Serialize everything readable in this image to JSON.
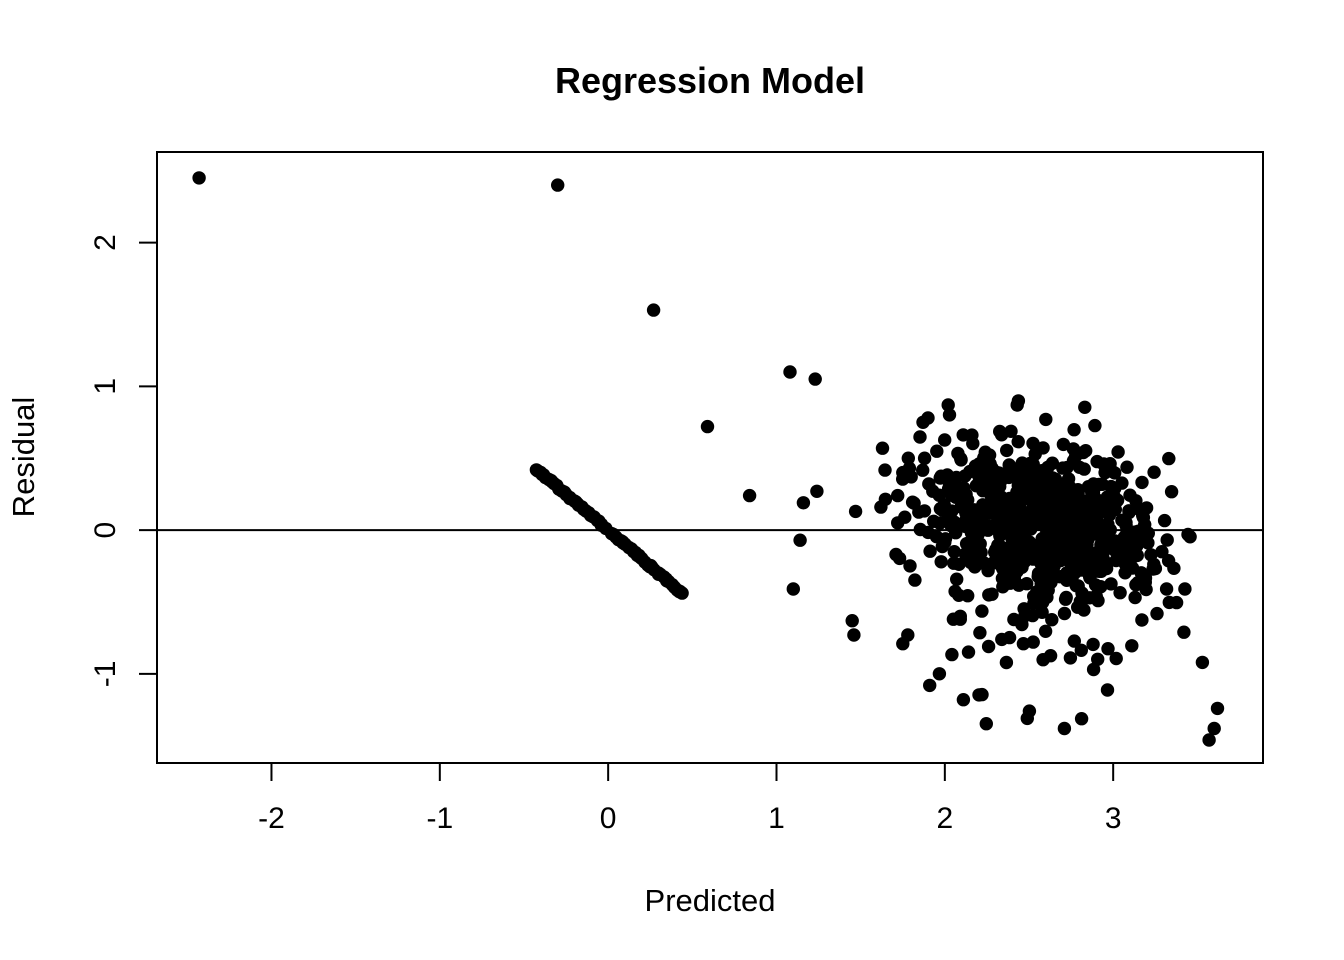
{
  "chart_data": {
    "type": "scatter",
    "title": "Regression Model",
    "xlabel": "Predicted",
    "ylabel": "Residual",
    "x_ticks": [
      -2,
      -1,
      0,
      1,
      2,
      3
    ],
    "y_ticks": [
      -1,
      0,
      1,
      2
    ],
    "xlim": [
      -2.68,
      3.89
    ],
    "ylim": [
      -1.62,
      2.63
    ],
    "hline_y": 0,
    "grid": false,
    "legend": "none",
    "background_color": "#ffffff",
    "point_color": "#000000",
    "point_radius_px": 6.7,
    "isolated_points": [
      [
        -2.43,
        2.45
      ],
      [
        -0.3,
        2.4
      ],
      [
        0.27,
        1.53
      ],
      [
        0.59,
        0.72
      ],
      [
        0.84,
        0.24
      ],
      [
        1.08,
        1.1
      ],
      [
        1.23,
        1.05
      ],
      [
        1.16,
        0.19
      ],
      [
        1.24,
        0.27
      ],
      [
        1.14,
        -0.07
      ],
      [
        1.1,
        -0.41
      ],
      [
        1.45,
        -0.63
      ],
      [
        1.46,
        -0.73
      ],
      [
        1.47,
        0.13
      ],
      [
        1.62,
        0.16
      ],
      [
        1.63,
        0.57
      ],
      [
        1.72,
        0.24
      ],
      [
        1.72,
        0.05
      ],
      [
        1.71,
        -0.17
      ],
      [
        1.75,
        0.4
      ],
      [
        1.8,
        0.37
      ],
      [
        1.87,
        0.75
      ],
      [
        1.88,
        0.5
      ],
      [
        1.9,
        0.78
      ],
      [
        2.02,
        0.87
      ],
      [
        1.75,
        -0.79
      ],
      [
        1.78,
        -0.73
      ],
      [
        1.91,
        -1.08
      ],
      [
        2.11,
        -1.18
      ],
      [
        2.49,
        -1.31
      ],
      [
        2.71,
        -1.38
      ],
      [
        3.42,
        -0.71
      ],
      [
        3.53,
        -0.92
      ],
      [
        3.62,
        -1.24
      ],
      [
        3.6,
        -1.38
      ],
      [
        3.57,
        -1.46
      ],
      [
        2.43,
        0.87
      ],
      [
        2.6,
        0.77
      ]
    ],
    "diagonal_stripe": {
      "slope": -1,
      "intercept": 0,
      "jitter": 0.008,
      "seed": 3,
      "segments": [
        {
          "x_start": -0.43,
          "x_end": -0.02,
          "n": 34
        },
        {
          "x_start": 0.02,
          "x_end": 0.44,
          "n": 35
        }
      ]
    },
    "cluster": {
      "n": 680,
      "cx": 2.58,
      "cy": 0.04,
      "sx": 0.345,
      "sy": 0.27,
      "corr": -0.18,
      "seed": 20,
      "clip_x": [
        1.55,
        3.47
      ],
      "clip_y": [
        -1.05,
        0.9
      ]
    },
    "bottom_scatter": {
      "n": 38,
      "cx": 2.55,
      "sx": 0.36,
      "x_min": 1.88,
      "x_max": 3.28,
      "y_top": -0.42,
      "y_bottom": -1.37,
      "falloff": 1.6,
      "seed": 11
    }
  }
}
